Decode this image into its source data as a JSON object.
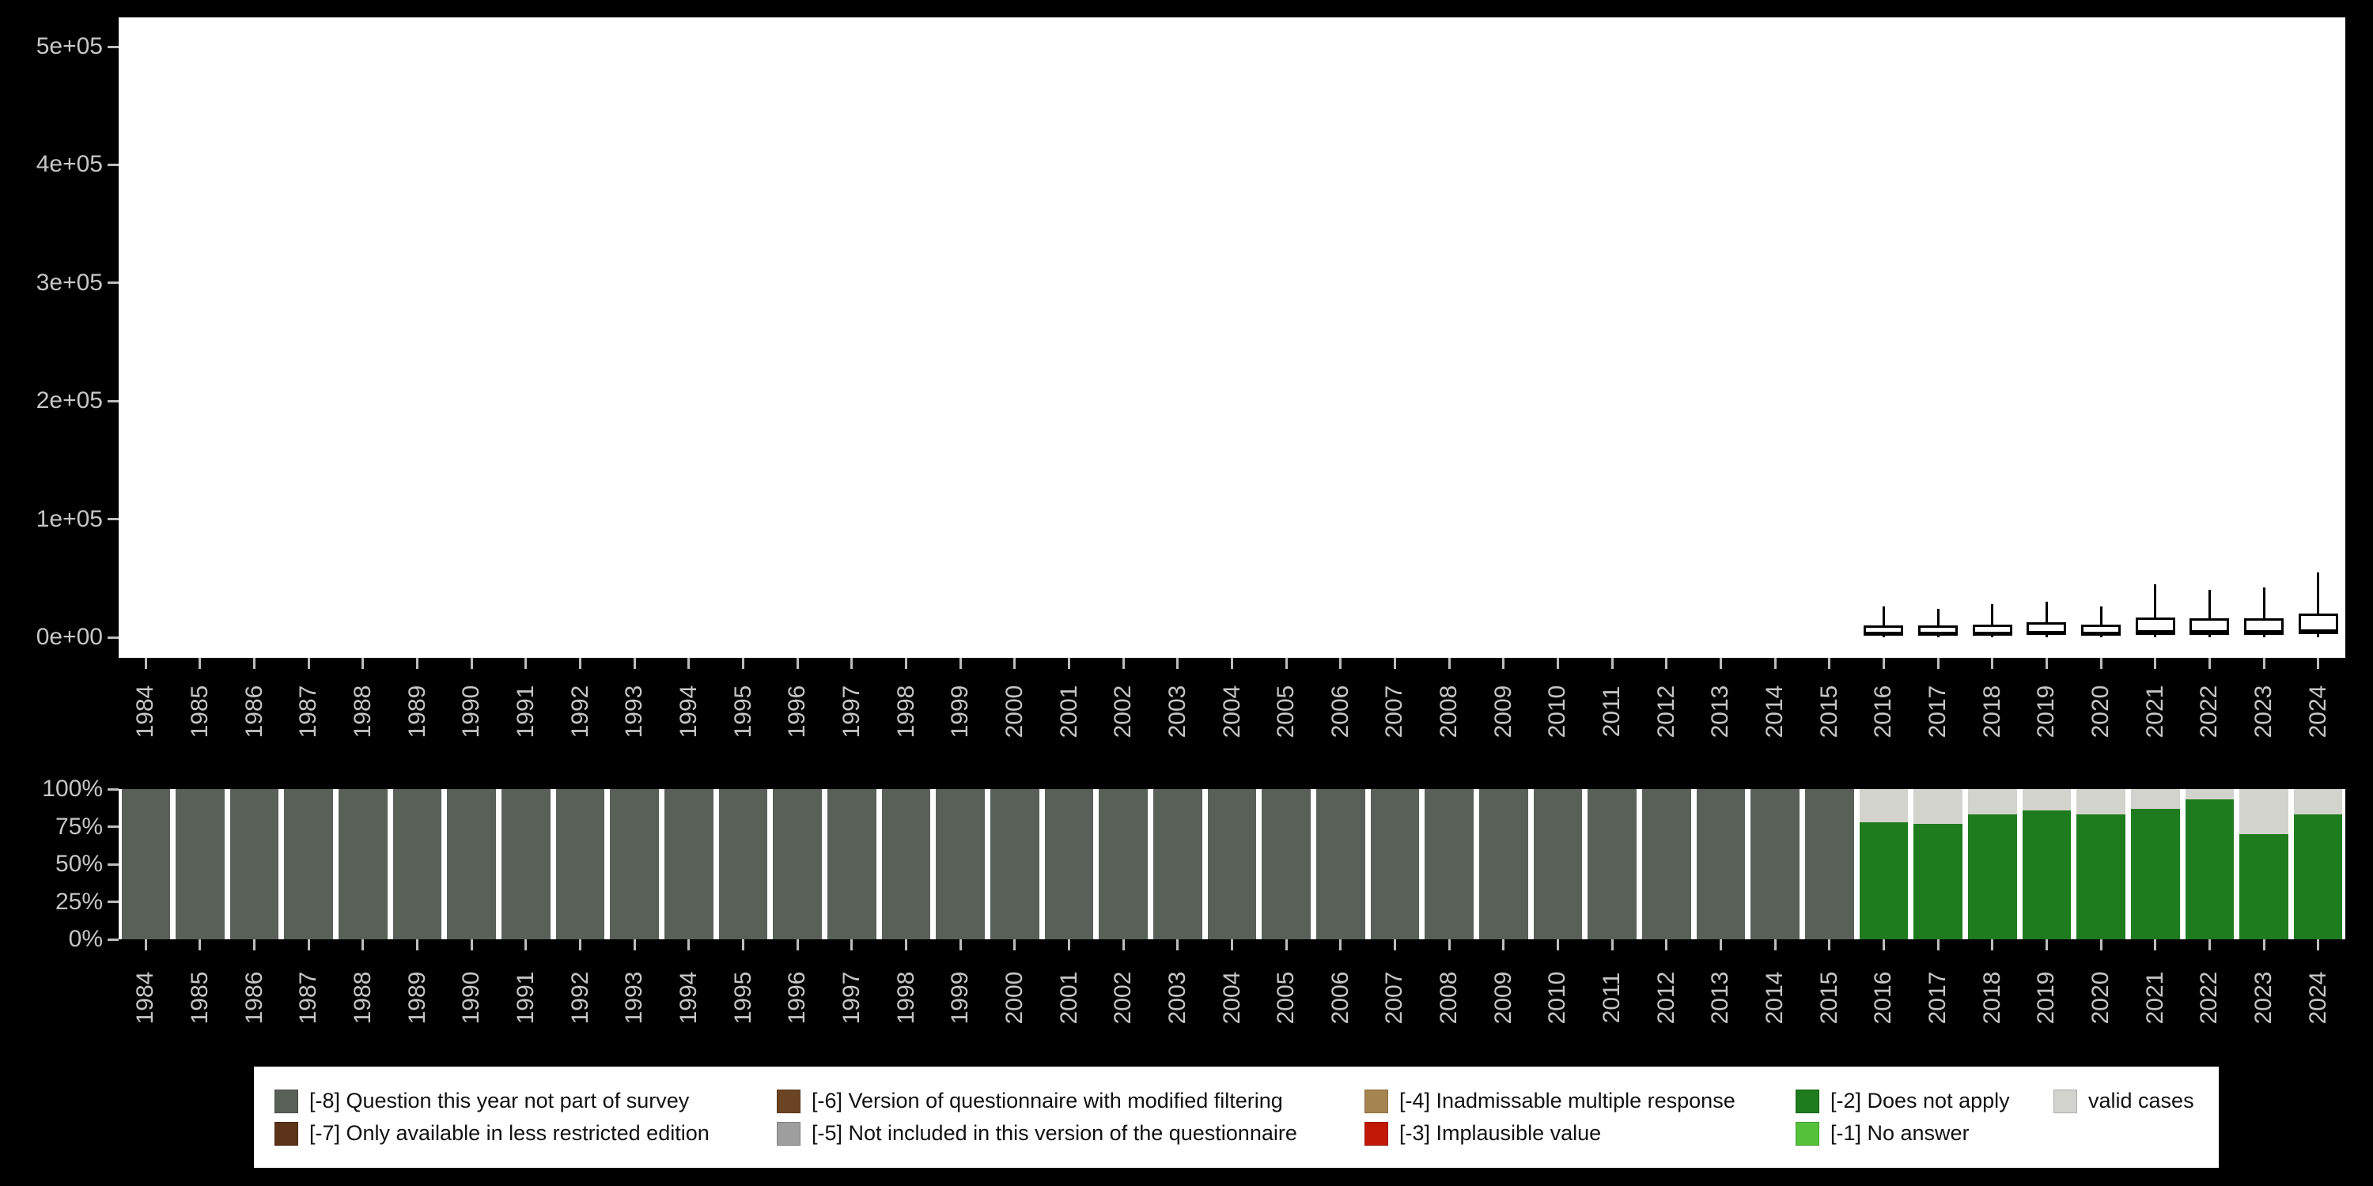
{
  "figure": {
    "background": "#000000",
    "panel_background": "#ffffff",
    "axis_text_color": "#c6c6c6"
  },
  "years": [
    "1984",
    "1985",
    "1986",
    "1987",
    "1988",
    "1989",
    "1990",
    "1991",
    "1992",
    "1993",
    "1994",
    "1995",
    "1996",
    "1997",
    "1998",
    "1999",
    "2000",
    "2001",
    "2002",
    "2003",
    "2004",
    "2005",
    "2006",
    "2007",
    "2008",
    "2009",
    "2010",
    "2011",
    "2012",
    "2013",
    "2014",
    "2015",
    "2016",
    "2017",
    "2018",
    "2019",
    "2020",
    "2021",
    "2022",
    "2023",
    "2024"
  ],
  "chart_data": [
    {
      "type": "boxplot",
      "title": "",
      "xlabel": "",
      "ylabel": "",
      "x_categories_key": "years",
      "ylim": [
        0,
        500000
      ],
      "grid": false,
      "y_ticks": [
        {
          "value": 0,
          "label": "0e+00"
        },
        {
          "value": 100000,
          "label": "1e+05"
        },
        {
          "value": 200000,
          "label": "2e+05"
        },
        {
          "value": 300000,
          "label": "3e+05"
        },
        {
          "value": 400000,
          "label": "4e+05"
        },
        {
          "value": 500000,
          "label": "5e+05"
        }
      ],
      "boxes": [
        {
          "year": "2016",
          "whisker_low": 0,
          "q1": 1500,
          "median": 3500,
          "q3": 10000,
          "whisker_high": 26000
        },
        {
          "year": "2017",
          "whisker_low": 0,
          "q1": 1500,
          "median": 3500,
          "q3": 10000,
          "whisker_high": 24000
        },
        {
          "year": "2018",
          "whisker_low": 0,
          "q1": 1500,
          "median": 4000,
          "q3": 11000,
          "whisker_high": 28000
        },
        {
          "year": "2019",
          "whisker_low": 0,
          "q1": 2000,
          "median": 4500,
          "q3": 13000,
          "whisker_high": 30000
        },
        {
          "year": "2020",
          "whisker_low": 0,
          "q1": 1500,
          "median": 4000,
          "q3": 11000,
          "whisker_high": 26000
        },
        {
          "year": "2021",
          "whisker_low": 0,
          "q1": 2000,
          "median": 5000,
          "q3": 17000,
          "whisker_high": 45000
        },
        {
          "year": "2022",
          "whisker_low": 0,
          "q1": 2000,
          "median": 5000,
          "q3": 16000,
          "whisker_high": 40000
        },
        {
          "year": "2023",
          "whisker_low": 0,
          "q1": 2000,
          "median": 5000,
          "q3": 16000,
          "whisker_high": 42000
        },
        {
          "year": "2024",
          "whisker_low": 0,
          "q1": 2500,
          "median": 6000,
          "q3": 20000,
          "whisker_high": 55000
        }
      ]
    },
    {
      "type": "bar",
      "stacked": true,
      "unit": "percent",
      "title": "",
      "xlabel": "",
      "ylabel": "",
      "x_categories_key": "years",
      "ylim": [
        0,
        100
      ],
      "y_ticks": [
        {
          "value": 0,
          "label": "0%"
        },
        {
          "value": 25,
          "label": "25%"
        },
        {
          "value": 50,
          "label": "50%"
        },
        {
          "value": 75,
          "label": "75%"
        },
        {
          "value": 100,
          "label": "100%"
        }
      ],
      "bars": [
        {
          "year": "1984",
          "segments": [
            {
              "key": "-8",
              "pct": 100
            }
          ]
        },
        {
          "year": "1985",
          "segments": [
            {
              "key": "-8",
              "pct": 100
            }
          ]
        },
        {
          "year": "1986",
          "segments": [
            {
              "key": "-8",
              "pct": 100
            }
          ]
        },
        {
          "year": "1987",
          "segments": [
            {
              "key": "-8",
              "pct": 100
            }
          ]
        },
        {
          "year": "1988",
          "segments": [
            {
              "key": "-8",
              "pct": 100
            }
          ]
        },
        {
          "year": "1989",
          "segments": [
            {
              "key": "-8",
              "pct": 100
            }
          ]
        },
        {
          "year": "1990",
          "segments": [
            {
              "key": "-8",
              "pct": 100
            }
          ]
        },
        {
          "year": "1991",
          "segments": [
            {
              "key": "-8",
              "pct": 100
            }
          ]
        },
        {
          "year": "1992",
          "segments": [
            {
              "key": "-8",
              "pct": 100
            }
          ]
        },
        {
          "year": "1993",
          "segments": [
            {
              "key": "-8",
              "pct": 100
            }
          ]
        },
        {
          "year": "1994",
          "segments": [
            {
              "key": "-8",
              "pct": 100
            }
          ]
        },
        {
          "year": "1995",
          "segments": [
            {
              "key": "-8",
              "pct": 100
            }
          ]
        },
        {
          "year": "1996",
          "segments": [
            {
              "key": "-8",
              "pct": 100
            }
          ]
        },
        {
          "year": "1997",
          "segments": [
            {
              "key": "-8",
              "pct": 100
            }
          ]
        },
        {
          "year": "1998",
          "segments": [
            {
              "key": "-8",
              "pct": 100
            }
          ]
        },
        {
          "year": "1999",
          "segments": [
            {
              "key": "-8",
              "pct": 100
            }
          ]
        },
        {
          "year": "2000",
          "segments": [
            {
              "key": "-8",
              "pct": 100
            }
          ]
        },
        {
          "year": "2001",
          "segments": [
            {
              "key": "-8",
              "pct": 100
            }
          ]
        },
        {
          "year": "2002",
          "segments": [
            {
              "key": "-8",
              "pct": 100
            }
          ]
        },
        {
          "year": "2003",
          "segments": [
            {
              "key": "-8",
              "pct": 100
            }
          ]
        },
        {
          "year": "2004",
          "segments": [
            {
              "key": "-8",
              "pct": 100
            }
          ]
        },
        {
          "year": "2005",
          "segments": [
            {
              "key": "-8",
              "pct": 100
            }
          ]
        },
        {
          "year": "2006",
          "segments": [
            {
              "key": "-8",
              "pct": 100
            }
          ]
        },
        {
          "year": "2007",
          "segments": [
            {
              "key": "-8",
              "pct": 100
            }
          ]
        },
        {
          "year": "2008",
          "segments": [
            {
              "key": "-8",
              "pct": 100
            }
          ]
        },
        {
          "year": "2009",
          "segments": [
            {
              "key": "-8",
              "pct": 100
            }
          ]
        },
        {
          "year": "2010",
          "segments": [
            {
              "key": "-8",
              "pct": 100
            }
          ]
        },
        {
          "year": "2011",
          "segments": [
            {
              "key": "-8",
              "pct": 100
            }
          ]
        },
        {
          "year": "2012",
          "segments": [
            {
              "key": "-8",
              "pct": 100
            }
          ]
        },
        {
          "year": "2013",
          "segments": [
            {
              "key": "-8",
              "pct": 100
            }
          ]
        },
        {
          "year": "2014",
          "segments": [
            {
              "key": "-8",
              "pct": 100
            }
          ]
        },
        {
          "year": "2015",
          "segments": [
            {
              "key": "-8",
              "pct": 100
            }
          ]
        },
        {
          "year": "2016",
          "segments": [
            {
              "key": "-2",
              "pct": 78
            },
            {
              "key": "valid",
              "pct": 22
            }
          ]
        },
        {
          "year": "2017",
          "segments": [
            {
              "key": "-2",
              "pct": 77
            },
            {
              "key": "valid",
              "pct": 23
            }
          ]
        },
        {
          "year": "2018",
          "segments": [
            {
              "key": "-2",
              "pct": 83
            },
            {
              "key": "valid",
              "pct": 17
            }
          ]
        },
        {
          "year": "2019",
          "segments": [
            {
              "key": "-2",
              "pct": 86
            },
            {
              "key": "valid",
              "pct": 14
            }
          ]
        },
        {
          "year": "2020",
          "segments": [
            {
              "key": "-2",
              "pct": 83
            },
            {
              "key": "valid",
              "pct": 17
            }
          ]
        },
        {
          "year": "2021",
          "segments": [
            {
              "key": "-2",
              "pct": 87
            },
            {
              "key": "valid",
              "pct": 13
            }
          ]
        },
        {
          "year": "2022",
          "segments": [
            {
              "key": "-2",
              "pct": 93
            },
            {
              "key": "valid",
              "pct": 7
            }
          ]
        },
        {
          "year": "2023",
          "segments": [
            {
              "key": "-2",
              "pct": 70
            },
            {
              "key": "valid",
              "pct": 30
            }
          ]
        },
        {
          "year": "2024",
          "segments": [
            {
              "key": "-2",
              "pct": 83
            },
            {
              "key": "valid",
              "pct": 17
            }
          ]
        }
      ]
    }
  ],
  "legend": {
    "background": "#ffffff",
    "items": [
      {
        "key": "-8",
        "label": "[-8] Question this year not part of survey",
        "color": "#586058"
      },
      {
        "key": "-6",
        "label": "[-6] Version of questionnaire with modified filtering",
        "color": "#6b4423"
      },
      {
        "key": "-4",
        "label": "[-4] Inadmissable multiple response",
        "color": "#a6844f"
      },
      {
        "key": "-2",
        "label": "[-2] Does not apply",
        "color": "#1e7b1e"
      },
      {
        "key": "valid",
        "label": "valid cases",
        "color": "#d3d3cd"
      },
      {
        "key": "-7",
        "label": "[-7] Only available in less restricted edition",
        "color": "#5b3318"
      },
      {
        "key": "-5",
        "label": "[-5] Not included in this version of the questionnaire",
        "color": "#9e9e9e"
      },
      {
        "key": "-3",
        "label": "[-3] Implausible value",
        "color": "#c21807"
      },
      {
        "key": "-1",
        "label": "[-1] No answer",
        "color": "#55c13b"
      }
    ]
  }
}
